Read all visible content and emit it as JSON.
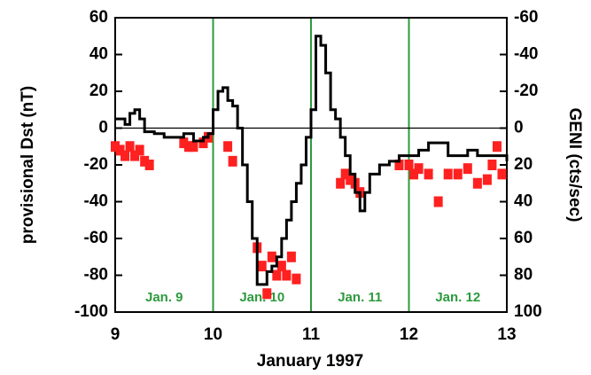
{
  "chart_data": {
    "type": "line",
    "x_label": "January 1997",
    "y_label": "provisional Dst (nT)",
    "y2_label": "GENI (cts/sec)",
    "xlim": [
      9,
      13
    ],
    "xticks": [
      9,
      10,
      11,
      12,
      13
    ],
    "ylim": [
      -100,
      60
    ],
    "yticks": [
      60,
      40,
      20,
      0,
      -20,
      -40,
      -60,
      -80,
      -100
    ],
    "y2lim": [
      100,
      -60
    ],
    "y2ticks": [
      -60,
      -40,
      -20,
      0,
      20,
      40,
      60,
      80,
      100
    ],
    "y2_inverted": true,
    "day_lines_color": "#2e9a3e",
    "annotations": [
      "Jan. 9",
      "Jan. 10",
      "Jan. 11",
      "Jan. 12"
    ],
    "series": [
      {
        "name": "Dst",
        "color": "#000000",
        "step": true,
        "x": [
          9.0,
          9.05,
          9.1,
          9.15,
          9.2,
          9.25,
          9.3,
          9.4,
          9.5,
          9.6,
          9.7,
          9.8,
          9.9,
          9.95,
          10.0,
          10.05,
          10.1,
          10.15,
          10.2,
          10.25,
          10.3,
          10.35,
          10.4,
          10.45,
          10.5,
          10.55,
          10.6,
          10.65,
          10.7,
          10.75,
          10.8,
          10.85,
          10.9,
          10.95,
          11.0,
          11.05,
          11.1,
          11.15,
          11.2,
          11.25,
          11.3,
          11.35,
          11.4,
          11.45,
          11.5,
          11.55,
          11.6,
          11.7,
          11.8,
          11.9,
          12.0,
          12.1,
          12.2,
          12.3,
          12.4,
          12.5,
          12.6,
          12.7,
          12.8,
          12.9,
          13.0
        ],
        "values": [
          5,
          5,
          2,
          8,
          10,
          5,
          -2,
          -3,
          -5,
          -5,
          -3,
          -7,
          -5,
          -3,
          10,
          20,
          22,
          15,
          12,
          0,
          -20,
          -40,
          -60,
          -85,
          -85,
          -78,
          -75,
          -70,
          -60,
          -50,
          -40,
          -30,
          -20,
          -5,
          10,
          50,
          45,
          30,
          10,
          5,
          -5,
          -15,
          -25,
          -35,
          -45,
          -35,
          -25,
          -20,
          -18,
          -15,
          -15,
          -12,
          -8,
          -8,
          -15,
          -15,
          -12,
          -15,
          -15,
          -15,
          -18
        ]
      },
      {
        "name": "GENI",
        "color": "#ff2020",
        "axis": "y2",
        "marker": "square",
        "x": [
          9.0,
          9.05,
          9.1,
          9.15,
          9.2,
          9.25,
          9.3,
          9.35,
          9.7,
          9.75,
          9.8,
          9.9,
          9.95,
          10.15,
          10.2,
          10.45,
          10.5,
          10.55,
          10.6,
          10.65,
          10.7,
          10.75,
          10.8,
          10.85,
          11.3,
          11.35,
          11.4,
          11.45,
          11.5,
          11.9,
          12.0,
          12.05,
          12.1,
          12.2,
          12.3,
          12.4,
          12.5,
          12.6,
          12.7,
          12.8,
          12.85,
          12.9,
          12.95
        ],
        "values": [
          10,
          12,
          15,
          10,
          15,
          12,
          18,
          20,
          8,
          10,
          10,
          8,
          5,
          10,
          18,
          65,
          75,
          90,
          70,
          80,
          75,
          80,
          70,
          82,
          30,
          25,
          28,
          30,
          35,
          20,
          20,
          25,
          22,
          25,
          40,
          25,
          25,
          22,
          30,
          28,
          20,
          10,
          25
        ]
      }
    ]
  }
}
